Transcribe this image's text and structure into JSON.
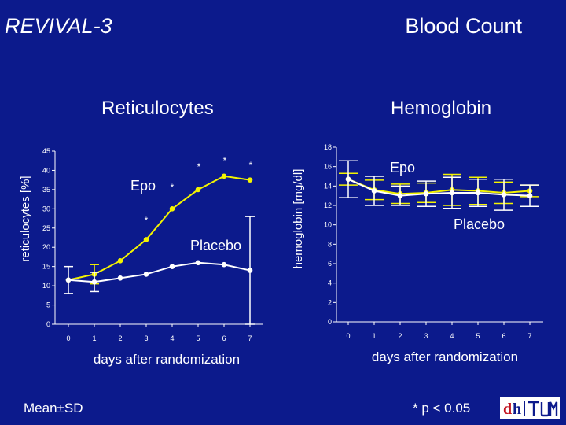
{
  "header": {
    "study": "REVIVAL-3",
    "topic": "Blood Count"
  },
  "footer": {
    "stats": "Mean±SD",
    "significance": "* p < 0.05"
  },
  "colors": {
    "background": "#0c1a8c",
    "epo": "#f4f400",
    "placebo": "#ffffff",
    "text": "#ffffff",
    "logo_bg": "#ffffff",
    "logo_accent": "#c1121f"
  },
  "logo": {
    "text": "dhTUM"
  },
  "chart_data": [
    {
      "type": "line",
      "title": "Reticulocytes",
      "xlabel": "days after randomization",
      "ylabel": "reticulocytes [%]",
      "x": [
        0,
        1,
        2,
        3,
        4,
        5,
        6,
        7
      ],
      "xticks": [
        "0",
        "1",
        "2",
        "3",
        "4",
        "5",
        "6",
        "7"
      ],
      "ylim": [
        0,
        45
      ],
      "yticks": [
        0,
        5,
        10,
        15,
        20,
        25,
        30,
        35,
        40,
        45
      ],
      "series": [
        {
          "name": "Epo",
          "color": "#f4f400",
          "values": [
            11.5,
            13,
            16.5,
            22,
            30,
            35,
            38.5,
            37.5
          ],
          "sd": [
            0,
            2.5,
            0,
            0,
            0,
            0,
            0,
            0
          ],
          "significance": [
            false,
            false,
            false,
            true,
            true,
            true,
            true,
            true
          ]
        },
        {
          "name": "Placebo",
          "color": "#ffffff",
          "values": [
            11.5,
            11,
            12,
            13,
            15,
            16,
            15.5,
            14
          ],
          "sd": [
            3.5,
            2.5,
            0,
            0,
            0,
            0,
            0,
            14
          ]
        }
      ],
      "legend": [
        {
          "label": "Epo",
          "series": 0
        },
        {
          "label": "Placebo",
          "series": 1
        }
      ],
      "annotations": [
        "*",
        "*",
        "*",
        "*",
        "*"
      ]
    },
    {
      "type": "line",
      "title": "Hemoglobin",
      "xlabel": "days after randomization",
      "ylabel": "hemoglobin [mg/dl]",
      "x": [
        0,
        1,
        2,
        3,
        4,
        5,
        6,
        7
      ],
      "xticks": [
        "0",
        "1",
        "2",
        "3",
        "4",
        "5",
        "6",
        "7"
      ],
      "ylim": [
        0,
        18
      ],
      "yticks": [
        0,
        2,
        4,
        6,
        8,
        10,
        12,
        14,
        16,
        18
      ],
      "series": [
        {
          "name": "Epo",
          "color": "#f4f400",
          "values": [
            14.7,
            13.6,
            13.2,
            13.3,
            13.6,
            13.5,
            13.3,
            13.5
          ],
          "sd": [
            0.6,
            1,
            1,
            1,
            1.6,
            1.4,
            1.1,
            0.6
          ]
        },
        {
          "name": "Placebo",
          "color": "#ffffff",
          "values": [
            14.7,
            13.5,
            13,
            13.2,
            13.3,
            13.3,
            13.1,
            13
          ],
          "sd": [
            1.9,
            1.5,
            1,
            1.3,
            1.6,
            1.4,
            1.6,
            1.1
          ]
        }
      ],
      "legend": [
        {
          "label": "Epo",
          "series": 0
        },
        {
          "label": "Placebo",
          "series": 1
        }
      ]
    }
  ]
}
